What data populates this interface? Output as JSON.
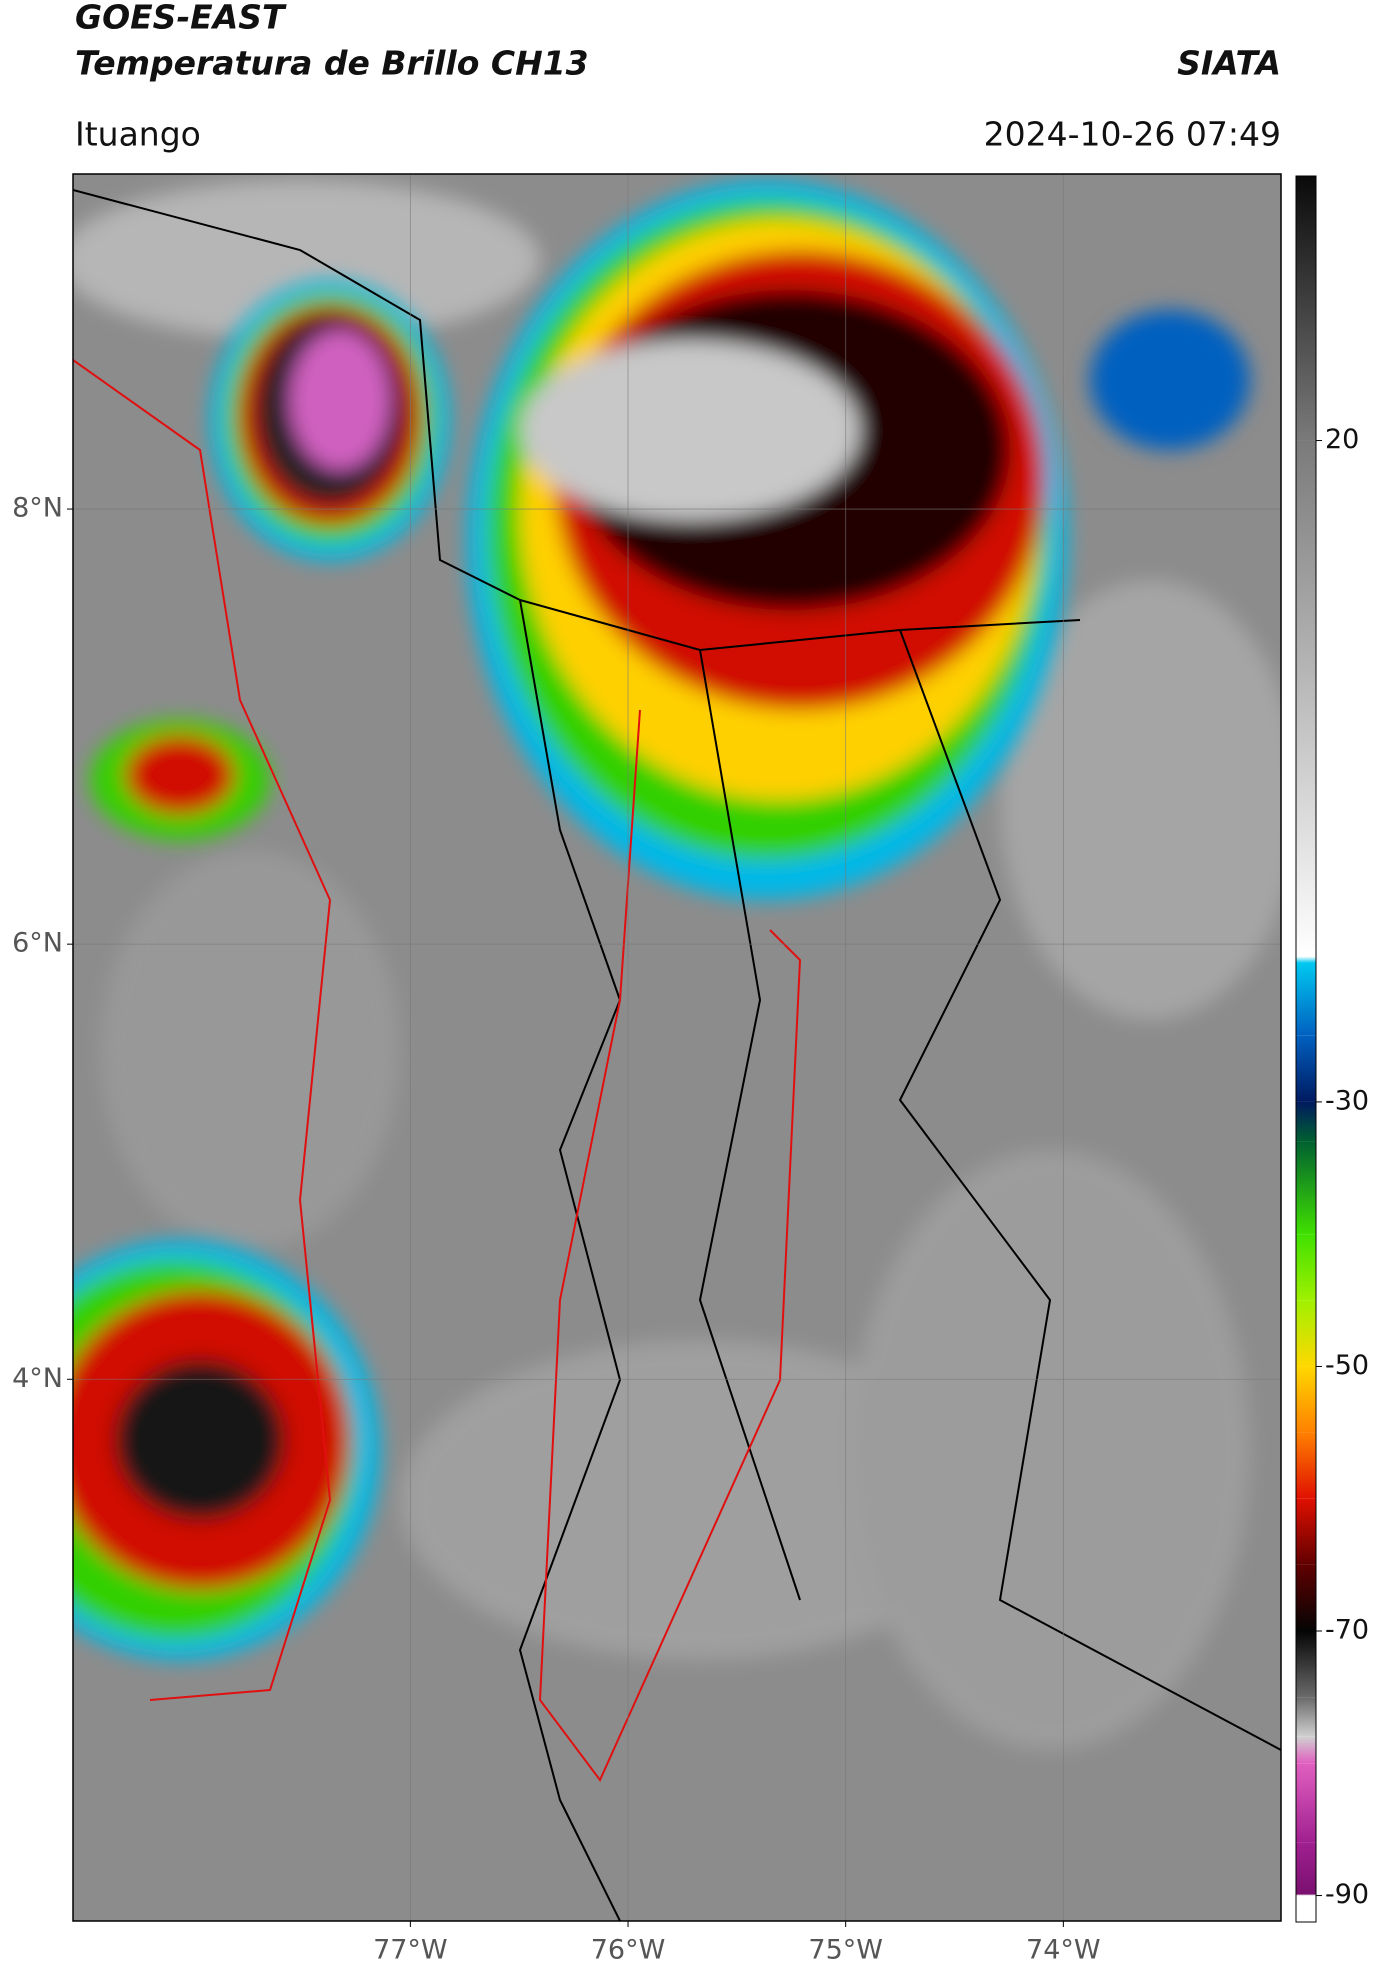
{
  "header": {
    "title": "GOES-EAST",
    "subtitle": "Temperatura de Brillo CH13",
    "source": "SIATA",
    "location": "Ituango",
    "datetime": "2024-10-26 07:49"
  },
  "map": {
    "xlim": [
      -78.55,
      -73
    ],
    "ylim": [
      1.51,
      9.54
    ],
    "xticks": [
      {
        "value": -77,
        "label": "77°W"
      },
      {
        "value": -76,
        "label": "76°W"
      },
      {
        "value": -75,
        "label": "75°W"
      },
      {
        "value": -74,
        "label": "74°W"
      }
    ],
    "yticks": [
      {
        "value": 8,
        "label": "8°N"
      },
      {
        "value": 6,
        "label": "6°N"
      },
      {
        "value": 4,
        "label": "4°N"
      }
    ],
    "grid": true
  },
  "colorbar": {
    "lim": [
      -92,
      40
    ],
    "ticks": [
      20,
      -30,
      -50,
      -70,
      -90
    ],
    "colormap": [
      {
        "value": 40,
        "color": "#0a0a0a"
      },
      {
        "value": 20,
        "color": "#7a7a7a"
      },
      {
        "value": -19,
        "color": "#ffffff"
      },
      {
        "value": -19.5,
        "color": "#00c8f0"
      },
      {
        "value": -25,
        "color": "#0060c0"
      },
      {
        "value": -30,
        "color": "#001a60"
      },
      {
        "value": -33,
        "color": "#006030"
      },
      {
        "value": -40,
        "color": "#40e000"
      },
      {
        "value": -45,
        "color": "#a0f000"
      },
      {
        "value": -50,
        "color": "#ffd800"
      },
      {
        "value": -55,
        "color": "#ff8000"
      },
      {
        "value": -60,
        "color": "#e01000"
      },
      {
        "value": -65,
        "color": "#600000"
      },
      {
        "value": -70,
        "color": "#050505"
      },
      {
        "value": -75,
        "color": "#6a6a6a"
      },
      {
        "value": -78,
        "color": "#d0d0d0"
      },
      {
        "value": -80,
        "color": "#e060c0"
      },
      {
        "value": -86,
        "color": "#a02090"
      },
      {
        "value": -89.9,
        "color": "#7a1070"
      },
      {
        "value": -90,
        "color": "#ffffff"
      },
      {
        "value": -92,
        "color": "#ffffff"
      }
    ]
  }
}
